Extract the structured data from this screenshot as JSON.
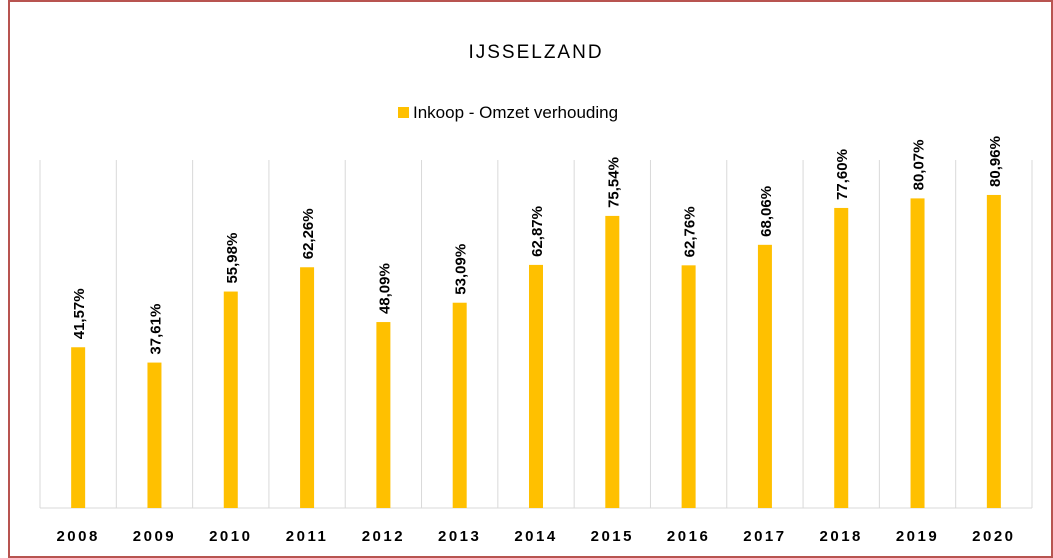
{
  "chart_data": {
    "type": "bar",
    "title": "IJSSELZAND",
    "categories": [
      "2008",
      "2009",
      "2010",
      "2011",
      "2012",
      "2013",
      "2014",
      "2015",
      "2016",
      "2017",
      "2018",
      "2019",
      "2020"
    ],
    "series": [
      {
        "name": "Inkoop - Omzet verhouding",
        "color": "#ffc000",
        "values": [
          41.57,
          37.61,
          55.98,
          62.26,
          48.09,
          53.09,
          62.87,
          75.54,
          62.76,
          68.06,
          77.6,
          80.07,
          80.96
        ],
        "value_labels": [
          "41,57%",
          "37,61%",
          "55,98%",
          "62,26%",
          "48,09%",
          "53,09%",
          "62,87%",
          "75,54%",
          "62,76%",
          "68,06%",
          "77,60%",
          "80,07%",
          "80,96%"
        ]
      }
    ],
    "ylim": [
      0,
      90
    ],
    "legend": "top"
  }
}
